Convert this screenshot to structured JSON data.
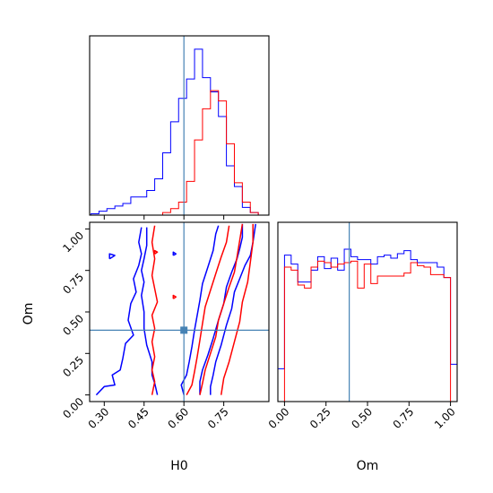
{
  "chart_data": {
    "type": "corner",
    "parameters": [
      "H0",
      "Om"
    ],
    "truth": {
      "H0": 0.6,
      "Om": 0.39
    },
    "truth_color": "#4682b4",
    "series": [
      {
        "color": "#0000ff"
      },
      {
        "color": "#ff0000"
      }
    ],
    "H0": {
      "xlabel": "H0",
      "xlim": [
        0.245,
        0.92
      ],
      "ticks": [
        0.3,
        0.45,
        0.6,
        0.75
      ],
      "tick_labels": [
        "0.30",
        "0.45",
        "0.60",
        "0.75"
      ],
      "bin_edges": [
        0.25,
        0.28,
        0.31,
        0.34,
        0.37,
        0.4,
        0.43,
        0.46,
        0.49,
        0.52,
        0.55,
        0.58,
        0.61,
        0.64,
        0.67,
        0.7,
        0.73,
        0.76,
        0.79,
        0.82,
        0.85,
        0.88
      ],
      "hist_blue": [
        1,
        3,
        5,
        7,
        9,
        14,
        14,
        19,
        28,
        48,
        72,
        90,
        105,
        128,
        106,
        95,
        76,
        38,
        22,
        6,
        2
      ],
      "hist_red": [
        0,
        0,
        0,
        0,
        0,
        0,
        0,
        0,
        0,
        2,
        5,
        10,
        26,
        58,
        82,
        96,
        88,
        55,
        25,
        10,
        2
      ]
    },
    "Om": {
      "xlabel": "Om",
      "ylabel": "Om",
      "lim": [
        -0.04,
        1.04
      ],
      "ticks": [
        0.0,
        0.25,
        0.5,
        0.75,
        1.0
      ],
      "tick_labels": [
        "0.00",
        "0.25",
        "0.50",
        "0.75",
        "1.00"
      ],
      "bin_edges": [
        -0.04,
        0.0,
        0.04,
        0.08,
        0.12,
        0.16,
        0.2,
        0.24,
        0.28,
        0.32,
        0.36,
        0.4,
        0.44,
        0.48,
        0.52,
        0.56,
        0.6,
        0.64,
        0.68,
        0.72,
        0.76,
        0.8,
        0.84,
        0.88,
        0.92,
        0.96,
        1.0,
        1.04
      ],
      "hist_blue": [
        0.22,
        0.98,
        0.92,
        0.8,
        0.8,
        0.88,
        0.97,
        0.89,
        0.96,
        0.88,
        1.02,
        0.97,
        0.95,
        0.95,
        0.92,
        0.97,
        0.98,
        0.96,
        0.99,
        1.01,
        0.95,
        0.93,
        0.93,
        0.93,
        0.9,
        0.83,
        0.25
      ],
      "hist_red": [
        0,
        0.9,
        0.88,
        0.78,
        0.76,
        0.9,
        0.94,
        0.93,
        0.9,
        0.92,
        0.93,
        0.94,
        0.76,
        0.92,
        0.79,
        0.84,
        0.84,
        0.84,
        0.84,
        0.86,
        0.93,
        0.91,
        0.9,
        0.85,
        0.85,
        0.83,
        0
      ]
    },
    "contours": {
      "blue": [
        [
          [
            0.27,
            0.0
          ],
          [
            0.3,
            0.05
          ],
          [
            0.34,
            0.06
          ],
          [
            0.33,
            0.12
          ],
          [
            0.36,
            0.15
          ],
          [
            0.37,
            0.22
          ],
          [
            0.38,
            0.31
          ],
          [
            0.41,
            0.36
          ],
          [
            0.39,
            0.45
          ],
          [
            0.4,
            0.55
          ],
          [
            0.42,
            0.62
          ],
          [
            0.41,
            0.7
          ],
          [
            0.43,
            0.78
          ],
          [
            0.44,
            0.85
          ],
          [
            0.43,
            0.92
          ],
          [
            0.44,
            1.01
          ]
        ],
        [
          [
            0.5,
            0.0
          ],
          [
            0.49,
            0.07
          ],
          [
            0.48,
            0.12
          ],
          [
            0.48,
            0.2
          ],
          [
            0.46,
            0.3
          ],
          [
            0.45,
            0.4
          ],
          [
            0.45,
            0.5
          ],
          [
            0.44,
            0.6
          ],
          [
            0.45,
            0.68
          ],
          [
            0.44,
            0.75
          ],
          [
            0.45,
            0.82
          ],
          [
            0.46,
            0.9
          ],
          [
            0.46,
            1.01
          ]
        ],
        [
          [
            0.6,
            0.0
          ],
          [
            0.59,
            0.06
          ],
          [
            0.61,
            0.12
          ],
          [
            0.62,
            0.2
          ],
          [
            0.63,
            0.29
          ],
          [
            0.64,
            0.39
          ],
          [
            0.65,
            0.48
          ],
          [
            0.66,
            0.57
          ],
          [
            0.67,
            0.67
          ],
          [
            0.69,
            0.77
          ],
          [
            0.71,
            0.87
          ],
          [
            0.72,
            0.97
          ],
          [
            0.73,
            1.02
          ]
        ],
        [
          [
            0.66,
            0.0
          ],
          [
            0.66,
            0.08
          ],
          [
            0.67,
            0.15
          ],
          [
            0.69,
            0.24
          ],
          [
            0.71,
            0.34
          ],
          [
            0.73,
            0.45
          ],
          [
            0.75,
            0.55
          ],
          [
            0.76,
            0.65
          ],
          [
            0.78,
            0.74
          ],
          [
            0.8,
            0.82
          ],
          [
            0.81,
            0.88
          ],
          [
            0.82,
            0.95
          ],
          [
            0.82,
            1.03
          ]
        ],
        [
          [
            0.7,
            0.0
          ],
          [
            0.7,
            0.05
          ],
          [
            0.71,
            0.12
          ],
          [
            0.72,
            0.2
          ],
          [
            0.74,
            0.3
          ],
          [
            0.76,
            0.42
          ],
          [
            0.78,
            0.52
          ],
          [
            0.79,
            0.62
          ],
          [
            0.81,
            0.7
          ],
          [
            0.83,
            0.78
          ],
          [
            0.85,
            0.84
          ],
          [
            0.86,
            0.92
          ],
          [
            0.87,
            1.03
          ]
        ],
        [
          [
            0.32,
            0.82
          ],
          [
            0.34,
            0.84
          ],
          [
            0.32,
            0.85
          ],
          [
            0.32,
            0.82
          ]
        ],
        [
          [
            0.56,
            0.84
          ],
          [
            0.57,
            0.85
          ],
          [
            0.56,
            0.86
          ],
          [
            0.56,
            0.84
          ]
        ]
      ],
      "red": [
        [
          [
            0.48,
            0.0
          ],
          [
            0.49,
            0.08
          ],
          [
            0.48,
            0.15
          ],
          [
            0.49,
            0.23
          ],
          [
            0.48,
            0.32
          ],
          [
            0.49,
            0.4
          ],
          [
            0.48,
            0.48
          ],
          [
            0.5,
            0.56
          ],
          [
            0.49,
            0.64
          ],
          [
            0.48,
            0.72
          ],
          [
            0.49,
            0.82
          ],
          [
            0.48,
            0.92
          ],
          [
            0.49,
            1.02
          ]
        ],
        [
          [
            0.61,
            0.0
          ],
          [
            0.63,
            0.06
          ],
          [
            0.64,
            0.14
          ],
          [
            0.65,
            0.23
          ],
          [
            0.66,
            0.33
          ],
          [
            0.67,
            0.43
          ],
          [
            0.68,
            0.53
          ],
          [
            0.7,
            0.63
          ],
          [
            0.72,
            0.73
          ],
          [
            0.74,
            0.83
          ],
          [
            0.76,
            0.92
          ],
          [
            0.77,
            1.02
          ]
        ],
        [
          [
            0.66,
            0.0
          ],
          [
            0.67,
            0.07
          ],
          [
            0.68,
            0.15
          ],
          [
            0.7,
            0.25
          ],
          [
            0.72,
            0.35
          ],
          [
            0.73,
            0.45
          ],
          [
            0.75,
            0.55
          ],
          [
            0.77,
            0.65
          ],
          [
            0.79,
            0.74
          ],
          [
            0.8,
            0.83
          ],
          [
            0.81,
            0.93
          ],
          [
            0.82,
            1.03
          ]
        ],
        [
          [
            0.74,
            0.0
          ],
          [
            0.75,
            0.1
          ],
          [
            0.77,
            0.2
          ],
          [
            0.79,
            0.32
          ],
          [
            0.81,
            0.44
          ],
          [
            0.82,
            0.56
          ],
          [
            0.84,
            0.68
          ],
          [
            0.85,
            0.8
          ],
          [
            0.86,
            0.92
          ],
          [
            0.86,
            1.03
          ]
        ],
        [
          [
            0.56,
            0.58
          ],
          [
            0.57,
            0.59
          ],
          [
            0.56,
            0.6
          ],
          [
            0.56,
            0.58
          ]
        ],
        [
          [
            0.49,
            0.85
          ],
          [
            0.5,
            0.86
          ],
          [
            0.49,
            0.87
          ],
          [
            0.49,
            0.85
          ]
        ]
      ]
    }
  }
}
